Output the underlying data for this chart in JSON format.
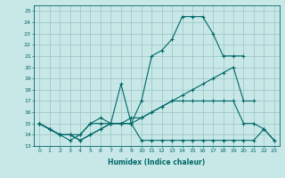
{
  "xlabel": "Humidex (Indice chaleur)",
  "bg_color": "#c8e8e8",
  "grid_color": "#a0c8c8",
  "line_color": "#006666",
  "xlim": [
    -0.5,
    23.5
  ],
  "ylim": [
    13,
    25.5
  ],
  "yticks": [
    13,
    14,
    15,
    16,
    17,
    18,
    19,
    20,
    21,
    22,
    23,
    24,
    25
  ],
  "xticks": [
    0,
    1,
    2,
    3,
    4,
    5,
    6,
    7,
    8,
    9,
    10,
    11,
    12,
    13,
    14,
    15,
    16,
    17,
    18,
    19,
    20,
    21,
    22,
    23
  ],
  "series": [
    {
      "x": [
        0,
        1,
        2,
        3,
        4,
        5,
        6,
        7,
        8,
        9,
        10,
        11,
        12,
        13,
        14,
        15,
        16,
        17,
        18,
        19,
        20
      ],
      "y": [
        15.0,
        14.5,
        14.0,
        14.0,
        14.0,
        15.0,
        15.5,
        15.0,
        15.0,
        15.0,
        17.0,
        21.0,
        21.5,
        22.5,
        24.5,
        24.5,
        24.5,
        23.0,
        21.0,
        21.0,
        21.0
      ]
    },
    {
      "x": [
        0,
        1,
        2,
        3,
        4,
        5,
        6,
        7,
        8,
        9,
        10,
        11,
        12,
        13,
        14,
        15,
        16,
        17,
        18,
        19,
        20,
        21,
        22,
        23
      ],
      "y": [
        15.0,
        14.5,
        14.0,
        13.5,
        14.0,
        15.0,
        15.0,
        15.0,
        18.5,
        15.0,
        13.5,
        13.5,
        13.5,
        13.5,
        13.5,
        13.5,
        13.5,
        13.5,
        13.5,
        13.5,
        13.5,
        13.5,
        14.5,
        13.5
      ]
    },
    {
      "x": [
        0,
        1,
        2,
        3,
        4,
        5,
        6,
        7,
        8,
        9,
        10,
        11,
        12,
        13,
        14,
        15,
        16,
        17,
        18,
        19,
        20,
        21,
        22,
        23
      ],
      "y": [
        15.0,
        14.5,
        14.0,
        14.0,
        13.5,
        14.0,
        14.5,
        15.0,
        15.0,
        15.0,
        15.5,
        16.0,
        16.5,
        17.0,
        17.0,
        17.0,
        17.0,
        17.0,
        17.0,
        17.0,
        15.0,
        15.0,
        14.5,
        13.5
      ]
    },
    {
      "x": [
        0,
        1,
        2,
        3,
        4,
        5,
        6,
        7,
        8,
        9,
        10,
        11,
        12,
        13,
        14,
        15,
        16,
        17,
        18,
        19,
        20,
        21,
        22,
        23
      ],
      "y": [
        15.0,
        14.5,
        14.0,
        14.0,
        13.5,
        14.0,
        14.5,
        15.0,
        15.0,
        15.5,
        15.5,
        16.0,
        16.5,
        17.0,
        17.5,
        18.0,
        18.5,
        19.0,
        19.5,
        20.0,
        17.0,
        17.0,
        null,
        null
      ]
    }
  ]
}
